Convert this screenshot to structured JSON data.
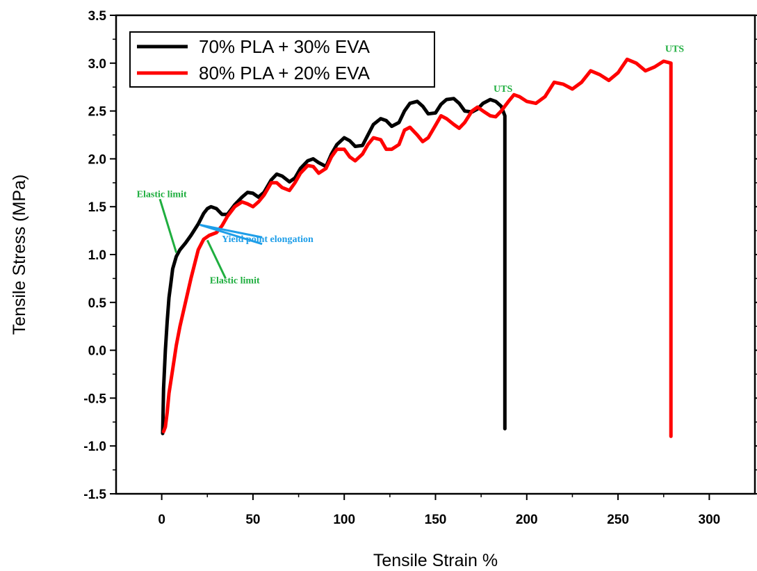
{
  "chart_data": {
    "type": "line",
    "xlabel": "Tensile Strain %",
    "ylabel": "Tensile Stress  (MPa)",
    "xlim": [
      -25,
      325
    ],
    "ylim": [
      -1.5,
      3.5
    ],
    "x_ticks": [
      0,
      50,
      100,
      150,
      200,
      250,
      300
    ],
    "y_ticks": [
      -1.5,
      -1.0,
      -0.5,
      0.0,
      0.5,
      1.0,
      1.5,
      2.0,
      2.5,
      3.0,
      3.5
    ],
    "x_tick_labels": [
      "0",
      "50",
      "100",
      "150",
      "200",
      "250",
      "300"
    ],
    "y_tick_labels": [
      "-1.5",
      "-1.0",
      "-0.5",
      "0.0",
      "0.5",
      "1.0",
      "1.5",
      "2.0",
      "2.5",
      "3.0",
      "3.5"
    ],
    "legend_position": "top-left",
    "grid": false,
    "series": [
      {
        "name": "70% PLA + 30% EVA",
        "color": "#000000",
        "x": [
          0.5,
          1,
          2,
          3,
          4,
          5,
          6,
          8,
          10,
          13,
          16,
          20,
          23,
          25,
          27,
          30,
          33,
          36,
          40,
          44,
          47,
          50,
          53,
          56,
          60,
          63,
          66,
          70,
          73,
          76,
          80,
          83,
          86,
          90,
          93,
          96,
          100,
          103,
          106,
          110,
          113,
          116,
          120,
          123,
          126,
          130,
          133,
          136,
          140,
          143,
          146,
          150,
          153,
          156,
          160,
          163,
          166,
          170,
          173,
          176,
          180,
          183,
          186,
          188,
          188,
          188
        ],
        "y": [
          -0.87,
          -0.4,
          0.0,
          0.3,
          0.55,
          0.7,
          0.85,
          0.98,
          1.05,
          1.12,
          1.2,
          1.32,
          1.43,
          1.48,
          1.5,
          1.48,
          1.42,
          1.42,
          1.52,
          1.6,
          1.65,
          1.64,
          1.6,
          1.65,
          1.78,
          1.84,
          1.82,
          1.76,
          1.8,
          1.9,
          1.98,
          2.0,
          1.96,
          1.92,
          2.05,
          2.15,
          2.22,
          2.19,
          2.13,
          2.14,
          2.25,
          2.36,
          2.42,
          2.4,
          2.34,
          2.38,
          2.5,
          2.58,
          2.6,
          2.55,
          2.47,
          2.48,
          2.57,
          2.62,
          2.63,
          2.58,
          2.5,
          2.49,
          2.52,
          2.58,
          2.62,
          2.6,
          2.55,
          2.45,
          0.8,
          -0.82
        ]
      },
      {
        "name": "80% PLA + 20% EVA",
        "color": "#ff0000",
        "x": [
          1,
          2,
          3,
          4,
          6,
          8,
          10,
          13,
          16,
          20,
          23,
          26,
          30,
          33,
          36,
          40,
          44,
          47,
          50,
          53,
          56,
          60,
          63,
          66,
          70,
          73,
          76,
          80,
          83,
          86,
          90,
          93,
          96,
          100,
          103,
          106,
          110,
          113,
          116,
          120,
          123,
          126,
          130,
          133,
          136,
          140,
          143,
          146,
          150,
          153,
          156,
          160,
          163,
          166,
          170,
          173,
          176,
          180,
          183,
          186,
          190,
          193,
          196,
          200,
          205,
          210,
          215,
          220,
          225,
          230,
          235,
          240,
          245,
          250,
          255,
          260,
          265,
          270,
          275,
          279,
          279,
          279
        ],
        "y": [
          -0.85,
          -0.8,
          -0.65,
          -0.45,
          -0.2,
          0.05,
          0.25,
          0.5,
          0.75,
          1.05,
          1.16,
          1.2,
          1.23,
          1.3,
          1.4,
          1.5,
          1.55,
          1.53,
          1.5,
          1.55,
          1.62,
          1.75,
          1.75,
          1.7,
          1.67,
          1.75,
          1.85,
          1.93,
          1.92,
          1.85,
          1.9,
          2.02,
          2.1,
          2.1,
          2.02,
          1.98,
          2.05,
          2.15,
          2.22,
          2.2,
          2.1,
          2.1,
          2.15,
          2.3,
          2.33,
          2.25,
          2.18,
          2.22,
          2.35,
          2.45,
          2.42,
          2.36,
          2.32,
          2.38,
          2.5,
          2.54,
          2.5,
          2.45,
          2.44,
          2.5,
          2.6,
          2.67,
          2.65,
          2.6,
          2.58,
          2.65,
          2.8,
          2.78,
          2.73,
          2.8,
          2.92,
          2.88,
          2.82,
          2.9,
          3.04,
          3.0,
          2.92,
          2.96,
          3.02,
          3.0,
          1.0,
          -0.9
        ]
      }
    ],
    "annotations": [
      {
        "text": "Elastic limit",
        "color": "#1fae3f",
        "x": 0,
        "y": 1.6
      },
      {
        "text": "Elastic limit",
        "color": "#1fae3f",
        "x": 40,
        "y": 0.7
      },
      {
        "text": "Yield point elongation",
        "color": "#1e9ee8",
        "x": 58,
        "y": 1.13
      },
      {
        "text": "UTS",
        "color": "#1fae3f",
        "x": 187,
        "y": 2.7
      },
      {
        "text": "UTS",
        "color": "#1fae3f",
        "x": 281,
        "y": 3.12
      }
    ],
    "pointer_lines": [
      {
        "color": "#1fae3f",
        "from": [
          -1,
          1.58
        ],
        "to": [
          8,
          1.02
        ]
      },
      {
        "color": "#1fae3f",
        "from": [
          25,
          1.15
        ],
        "to": [
          35,
          0.75
        ]
      },
      {
        "color": "#1e9ee8",
        "from": [
          21,
          1.31
        ],
        "to": [
          55,
          1.18
        ]
      },
      {
        "color": "#1e9ee8",
        "from": [
          21,
          1.31
        ],
        "to": [
          55,
          1.11
        ]
      }
    ]
  }
}
